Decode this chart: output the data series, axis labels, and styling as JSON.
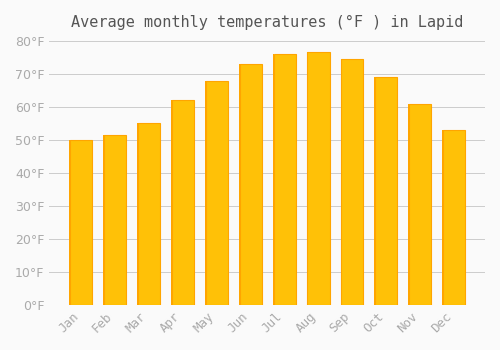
{
  "title": "Average monthly temperatures (°F ) in Lapid",
  "months": [
    "Jan",
    "Feb",
    "Mar",
    "Apr",
    "May",
    "Jun",
    "Jul",
    "Aug",
    "Sep",
    "Oct",
    "Nov",
    "Dec"
  ],
  "values": [
    50,
    51.5,
    55,
    62,
    68,
    73,
    76,
    76.5,
    74.5,
    69,
    61,
    53
  ],
  "bar_color_main": "#FFC107",
  "bar_color_edge": "#FFA500",
  "background_color": "#FAFAFA",
  "grid_color": "#CCCCCC",
  "tick_label_color": "#AAAAAA",
  "title_color": "#555555",
  "ylim": [
    0,
    80
  ],
  "yticks": [
    0,
    10,
    20,
    30,
    40,
    50,
    60,
    70,
    80
  ],
  "title_fontsize": 11,
  "tick_fontsize": 9
}
